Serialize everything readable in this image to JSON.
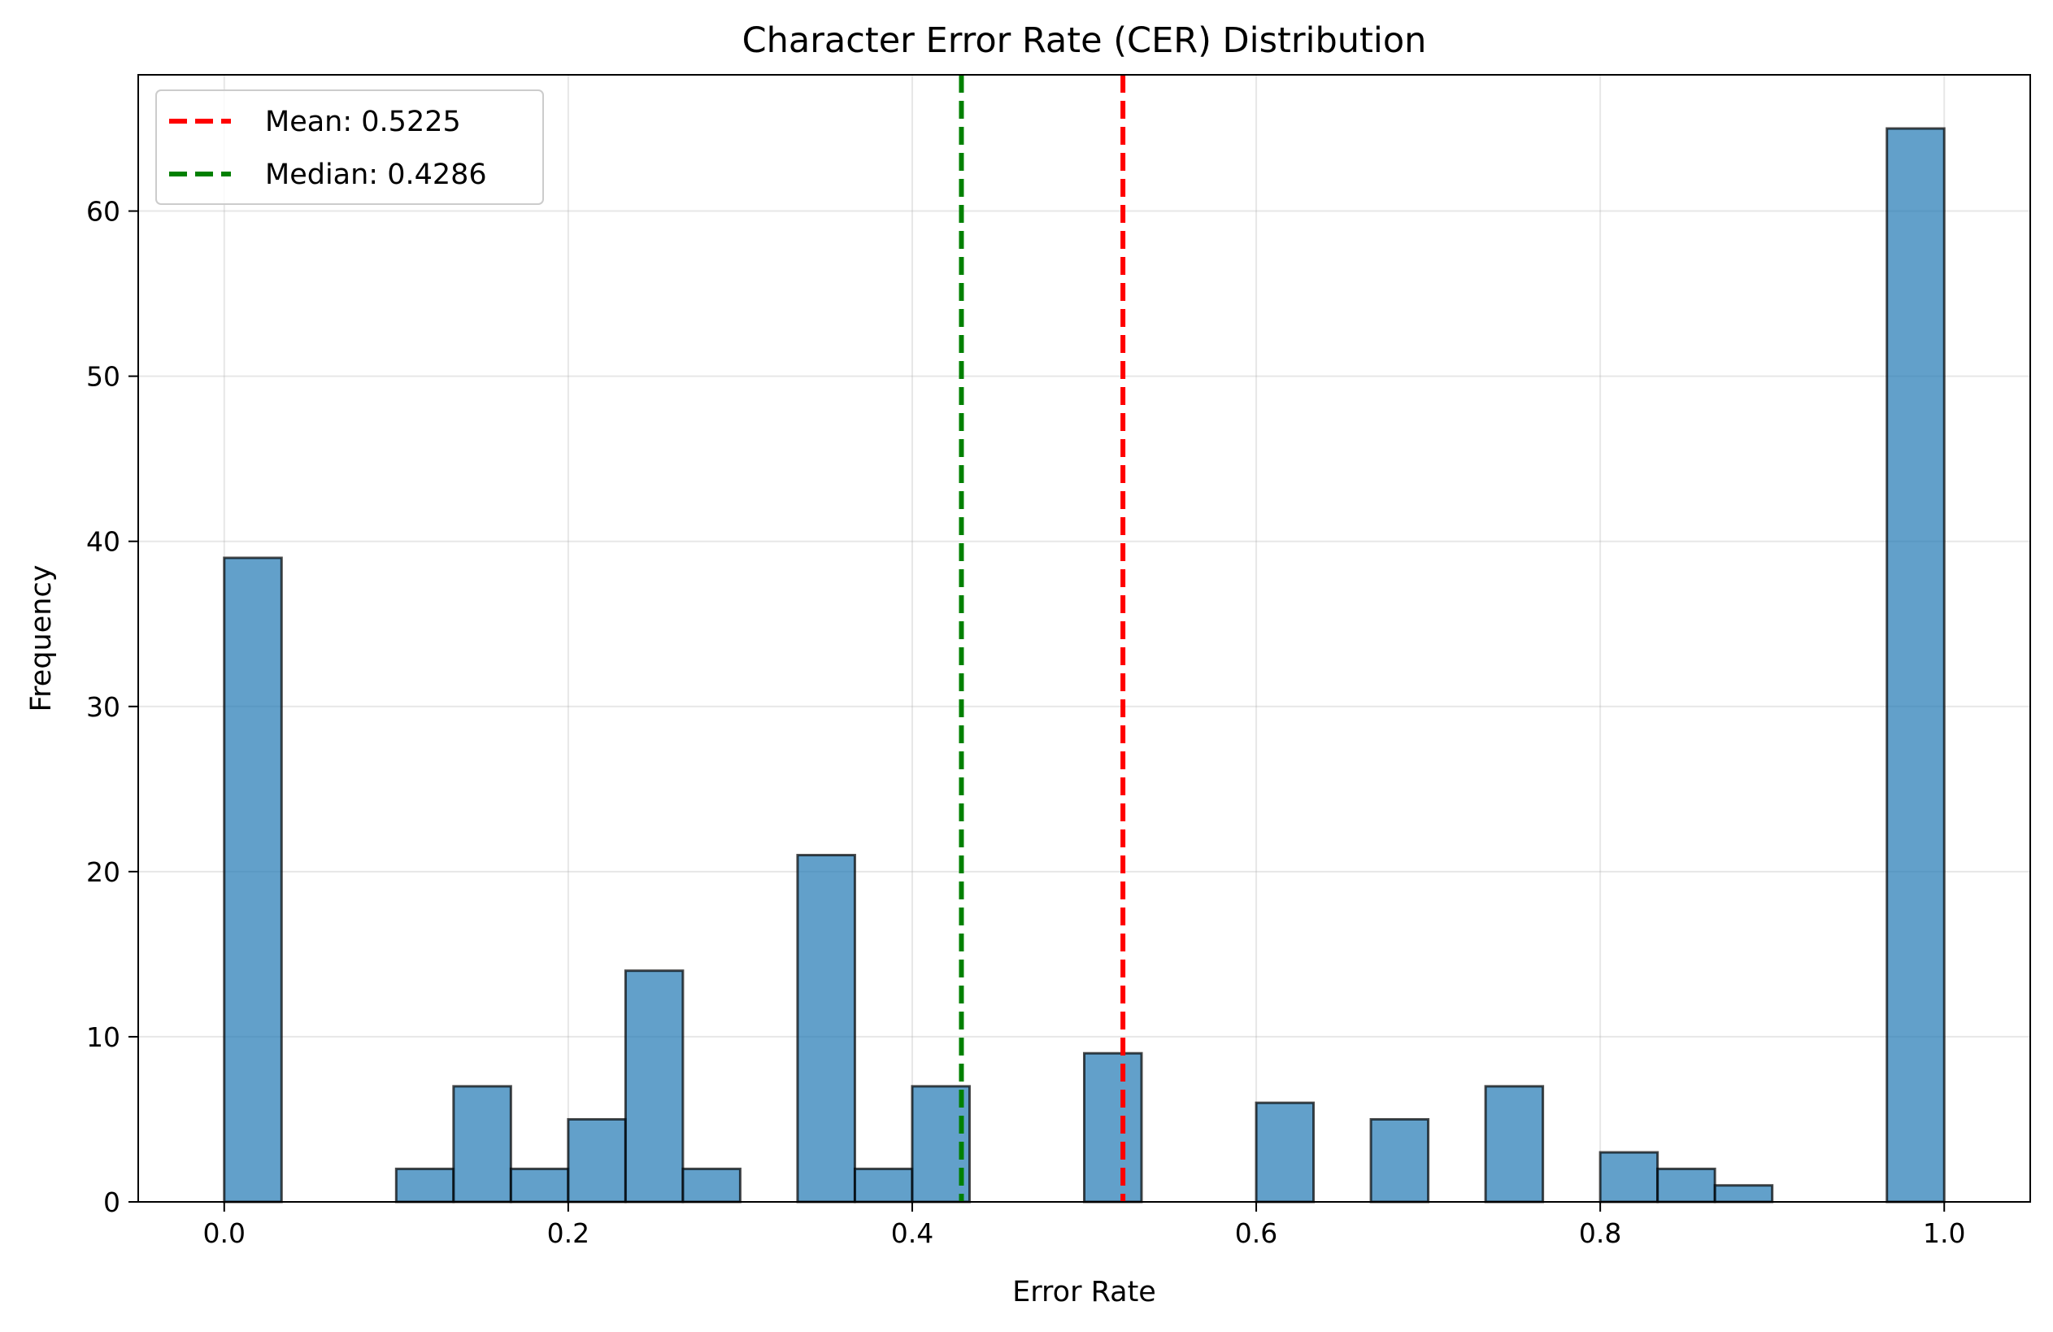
{
  "chart_data": {
    "type": "histogram",
    "title": "Character Error Rate (CER) Distribution",
    "xlabel": "Error Rate",
    "ylabel": "Frequency",
    "xlim": [
      -0.05,
      1.05
    ],
    "ylim": [
      0,
      68.25
    ],
    "xticks": [
      {
        "value": 0.0,
        "label": "0.0"
      },
      {
        "value": 0.2,
        "label": "0.2"
      },
      {
        "value": 0.4,
        "label": "0.4"
      },
      {
        "value": 0.6,
        "label": "0.6"
      },
      {
        "value": 0.8,
        "label": "0.8"
      },
      {
        "value": 1.0,
        "label": "1.0"
      }
    ],
    "yticks": [
      {
        "value": 0,
        "label": "0"
      },
      {
        "value": 10,
        "label": "10"
      },
      {
        "value": 20,
        "label": "20"
      },
      {
        "value": 30,
        "label": "30"
      },
      {
        "value": 40,
        "label": "40"
      },
      {
        "value": 50,
        "label": "50"
      },
      {
        "value": 60,
        "label": "60"
      }
    ],
    "grid": true,
    "bin_start": 0.0,
    "bin_end": 1.0,
    "bin_count": 30,
    "counts": [
      39,
      0,
      0,
      2,
      7,
      2,
      5,
      14,
      2,
      0,
      21,
      2,
      7,
      0,
      0,
      9,
      0,
      0,
      6,
      0,
      5,
      0,
      7,
      0,
      3,
      2,
      1,
      0,
      0,
      65
    ],
    "bar_color": "#1f77b4",
    "bar_edge_color": "#000000",
    "reference_lines": [
      {
        "name": "Mean: 0.5225",
        "value": 0.5225,
        "color": "#ff0000"
      },
      {
        "name": "Median: 0.4286",
        "value": 0.4286,
        "color": "#008000"
      }
    ],
    "legend_position": "upper-left"
  }
}
